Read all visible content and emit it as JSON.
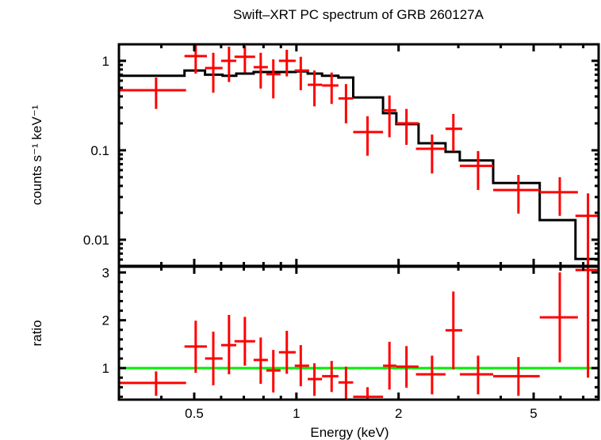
{
  "chart_data": [
    {
      "type": "scatter",
      "panel": "spectrum",
      "title": "Swift–XRT PC spectrum of GRB 260127A",
      "xlabel": "Energy (keV)",
      "ylabel": "counts s⁻¹ keV⁻¹",
      "xscale": "log",
      "yscale": "log",
      "xlim": [
        0.3,
        7.77
      ],
      "ylim": [
        0.0051,
        1.53
      ],
      "yticks": [
        {
          "v": 1,
          "label": "1"
        },
        {
          "v": 0.1,
          "label": "0.1"
        },
        {
          "v": 0.01,
          "label": "0.01"
        }
      ],
      "series": [
        {
          "name": "data",
          "color": "#ff0000",
          "points": [
            {
              "x": 0.386,
              "xlo": 0.3,
              "xhi": 0.473,
              "y": 0.47,
              "ylo": 0.29,
              "yhi": 0.65
            },
            {
              "x": 0.505,
              "xlo": 0.468,
              "xhi": 0.545,
              "y": 1.13,
              "ylo": 0.72,
              "yhi": 1.57
            },
            {
              "x": 0.569,
              "xlo": 0.538,
              "xhi": 0.606,
              "y": 0.83,
              "ylo": 0.44,
              "yhi": 1.23
            },
            {
              "x": 0.633,
              "xlo": 0.6,
              "xhi": 0.665,
              "y": 1.0,
              "ylo": 0.58,
              "yhi": 1.44
            },
            {
              "x": 0.705,
              "xlo": 0.657,
              "xhi": 0.756,
              "y": 1.11,
              "ylo": 0.74,
              "yhi": 1.47
            },
            {
              "x": 0.785,
              "xlo": 0.748,
              "xhi": 0.824,
              "y": 0.85,
              "ylo": 0.49,
              "yhi": 1.23
            },
            {
              "x": 0.855,
              "xlo": 0.815,
              "xhi": 0.898,
              "y": 0.71,
              "ylo": 0.38,
              "yhi": 1.04
            },
            {
              "x": 0.937,
              "xlo": 0.888,
              "xhi": 0.995,
              "y": 1.0,
              "ylo": 0.67,
              "yhi": 1.33
            },
            {
              "x": 1.03,
              "xlo": 0.989,
              "xhi": 1.09,
              "y": 0.78,
              "ylo": 0.47,
              "yhi": 1.11
            },
            {
              "x": 1.13,
              "xlo": 1.08,
              "xhi": 1.19,
              "y": 0.54,
              "ylo": 0.31,
              "yhi": 0.78
            },
            {
              "x": 1.27,
              "xlo": 1.19,
              "xhi": 1.33,
              "y": 0.53,
              "ylo": 0.33,
              "yhi": 0.74
            },
            {
              "x": 1.4,
              "xlo": 1.33,
              "xhi": 1.47,
              "y": 0.38,
              "ylo": 0.2,
              "yhi": 0.55
            },
            {
              "x": 1.62,
              "xlo": 1.47,
              "xhi": 1.8,
              "y": 0.16,
              "ylo": 0.087,
              "yhi": 0.24
            },
            {
              "x": 1.88,
              "xlo": 1.8,
              "xhi": 1.97,
              "y": 0.28,
              "ylo": 0.14,
              "yhi": 0.41
            },
            {
              "x": 2.11,
              "xlo": 1.97,
              "xhi": 2.29,
              "y": 0.2,
              "ylo": 0.115,
              "yhi": 0.29
            },
            {
              "x": 2.51,
              "xlo": 2.25,
              "xhi": 2.75,
              "y": 0.104,
              "ylo": 0.055,
              "yhi": 0.15
            },
            {
              "x": 2.9,
              "xlo": 2.75,
              "xhi": 3.08,
              "y": 0.174,
              "ylo": 0.098,
              "yhi": 0.255
            },
            {
              "x": 3.43,
              "xlo": 3.03,
              "xhi": 3.8,
              "y": 0.067,
              "ylo": 0.036,
              "yhi": 0.098
            },
            {
              "x": 4.51,
              "xlo": 3.8,
              "xhi": 5.21,
              "y": 0.036,
              "ylo": 0.0196,
              "yhi": 0.053
            },
            {
              "x": 5.97,
              "xlo": 5.21,
              "xhi": 6.75,
              "y": 0.034,
              "ylo": 0.0185,
              "yhi": 0.05
            },
            {
              "x": 7.23,
              "xlo": 6.64,
              "xhi": 7.77,
              "y": 0.0185,
              "ylo": 0.005,
              "yhi": 0.033
            }
          ]
        },
        {
          "name": "model",
          "color": "#000000",
          "steps": [
            {
              "xlo": 0.3,
              "xhi": 0.468,
              "y": 0.68
            },
            {
              "xlo": 0.468,
              "xhi": 0.538,
              "y": 0.78
            },
            {
              "xlo": 0.538,
              "xhi": 0.606,
              "y": 0.7
            },
            {
              "xlo": 0.606,
              "xhi": 0.665,
              "y": 0.68
            },
            {
              "xlo": 0.665,
              "xhi": 0.748,
              "y": 0.72
            },
            {
              "xlo": 0.748,
              "xhi": 0.995,
              "y": 0.75
            },
            {
              "xlo": 0.995,
              "xhi": 1.08,
              "y": 0.76
            },
            {
              "xlo": 1.08,
              "xhi": 1.19,
              "y": 0.72
            },
            {
              "xlo": 1.19,
              "xhi": 1.33,
              "y": 0.68
            },
            {
              "xlo": 1.33,
              "xhi": 1.47,
              "y": 0.65
            },
            {
              "xlo": 1.47,
              "xhi": 1.8,
              "y": 0.39
            },
            {
              "xlo": 1.8,
              "xhi": 1.97,
              "y": 0.26
            },
            {
              "xlo": 1.97,
              "xhi": 2.29,
              "y": 0.196
            },
            {
              "xlo": 2.29,
              "xhi": 2.75,
              "y": 0.12
            },
            {
              "xlo": 2.75,
              "xhi": 3.03,
              "y": 0.096
            },
            {
              "xlo": 3.03,
              "xhi": 3.8,
              "y": 0.077
            },
            {
              "xlo": 3.8,
              "xhi": 5.21,
              "y": 0.043
            },
            {
              "xlo": 5.21,
              "xhi": 6.64,
              "y": 0.0166
            },
            {
              "xlo": 6.64,
              "xhi": 7.77,
              "y": 0.0061
            }
          ]
        }
      ]
    },
    {
      "type": "scatter",
      "panel": "ratio",
      "xlabel": "Energy (keV)",
      "ylabel": "ratio",
      "xscale": "log",
      "yscale": "linear",
      "xlim": [
        0.3,
        7.77
      ],
      "ylim": [
        0.34,
        3.12
      ],
      "xticks": [
        {
          "v": 0.5,
          "label": "0.5"
        },
        {
          "v": 1,
          "label": "1"
        },
        {
          "v": 2,
          "label": "2"
        },
        {
          "v": 5,
          "label": "5"
        }
      ],
      "yticks": [
        {
          "v": 1,
          "label": "1"
        },
        {
          "v": 2,
          "label": "2"
        },
        {
          "v": 3,
          "label": "3"
        }
      ],
      "reference_line": {
        "y": 1,
        "color": "#00ee00"
      },
      "series": [
        {
          "name": "ratio",
          "color": "#ff0000",
          "points": [
            {
              "x": 0.386,
              "xlo": 0.3,
              "xhi": 0.473,
              "y": 0.69,
              "ylo": 0.42,
              "yhi": 0.93
            },
            {
              "x": 0.505,
              "xlo": 0.468,
              "xhi": 0.545,
              "y": 1.45,
              "ylo": 0.9,
              "yhi": 1.99
            },
            {
              "x": 0.569,
              "xlo": 0.538,
              "xhi": 0.606,
              "y": 1.2,
              "ylo": 0.64,
              "yhi": 1.76
            },
            {
              "x": 0.633,
              "xlo": 0.6,
              "xhi": 0.665,
              "y": 1.48,
              "ylo": 0.87,
              "yhi": 2.11
            },
            {
              "x": 0.705,
              "xlo": 0.657,
              "xhi": 0.756,
              "y": 1.56,
              "ylo": 1.05,
              "yhi": 2.07
            },
            {
              "x": 0.785,
              "xlo": 0.748,
              "xhi": 0.824,
              "y": 1.17,
              "ylo": 0.67,
              "yhi": 1.64
            },
            {
              "x": 0.855,
              "xlo": 0.815,
              "xhi": 0.898,
              "y": 0.95,
              "ylo": 0.49,
              "yhi": 1.38
            },
            {
              "x": 0.937,
              "xlo": 0.888,
              "xhi": 0.995,
              "y": 1.33,
              "ylo": 0.88,
              "yhi": 1.78
            },
            {
              "x": 1.03,
              "xlo": 0.989,
              "xhi": 1.09,
              "y": 1.05,
              "ylo": 0.62,
              "yhi": 1.48
            },
            {
              "x": 1.13,
              "xlo": 1.08,
              "xhi": 1.19,
              "y": 0.77,
              "ylo": 0.42,
              "yhi": 1.1
            },
            {
              "x": 1.27,
              "xlo": 1.19,
              "xhi": 1.33,
              "y": 0.83,
              "ylo": 0.5,
              "yhi": 1.15
            },
            {
              "x": 1.4,
              "xlo": 1.33,
              "xhi": 1.47,
              "y": 0.7,
              "ylo": 0.34,
              "yhi": 1.03
            },
            {
              "x": 1.62,
              "xlo": 1.47,
              "xhi": 1.8,
              "y": 0.4,
              "ylo": 0.34,
              "yhi": 0.6
            },
            {
              "x": 1.88,
              "xlo": 1.8,
              "xhi": 1.97,
              "y": 1.05,
              "ylo": 0.55,
              "yhi": 1.55
            },
            {
              "x": 2.11,
              "xlo": 1.97,
              "xhi": 2.29,
              "y": 1.03,
              "ylo": 0.59,
              "yhi": 1.46
            },
            {
              "x": 2.51,
              "xlo": 2.25,
              "xhi": 2.75,
              "y": 0.87,
              "ylo": 0.45,
              "yhi": 1.26
            },
            {
              "x": 2.9,
              "xlo": 2.75,
              "xhi": 3.08,
              "y": 1.79,
              "ylo": 0.97,
              "yhi": 2.6
            },
            {
              "x": 3.43,
              "xlo": 3.03,
              "xhi": 3.8,
              "y": 0.87,
              "ylo": 0.45,
              "yhi": 1.26
            },
            {
              "x": 4.51,
              "xlo": 3.8,
              "xhi": 5.21,
              "y": 0.83,
              "ylo": 0.42,
              "yhi": 1.23
            },
            {
              "x": 5.97,
              "xlo": 5.21,
              "xhi": 6.75,
              "y": 2.06,
              "ylo": 1.12,
              "yhi": 3.0
            },
            {
              "x": 7.23,
              "xlo": 6.64,
              "xhi": 7.77,
              "y": 3.05,
              "ylo": 0.8,
              "yhi": 3.12
            }
          ]
        }
      ]
    }
  ]
}
